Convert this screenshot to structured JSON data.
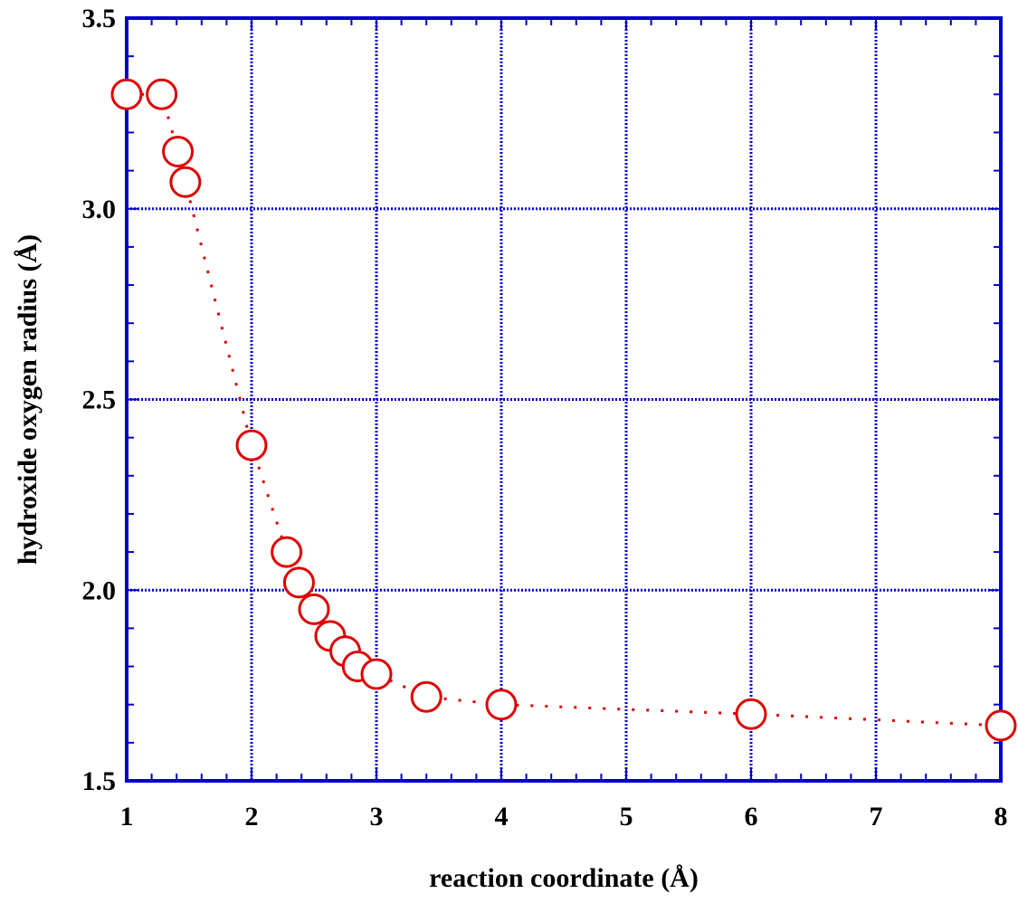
{
  "chart_data": {
    "type": "scatter",
    "title": "",
    "xlabel": "reaction coordinate (Å)",
    "ylabel": "hydroxide oxygen radius (Å)",
    "xlim": [
      1,
      8
    ],
    "ylim": [
      1.5,
      3.5
    ],
    "x_ticks": [
      "1",
      "2",
      "3",
      "4",
      "5",
      "6",
      "7",
      "8"
    ],
    "y_ticks": [
      "1.5",
      "2.0",
      "2.5",
      "3.0",
      "3.5"
    ],
    "grid": true,
    "legend": "none",
    "colors": {
      "axis": "#0000cc",
      "grid": "#0000cc",
      "series": "#dd0000"
    },
    "series": [
      {
        "marker": "open-circle",
        "line": "dotted",
        "points": [
          {
            "x": 1.0,
            "y": 3.3
          },
          {
            "x": 1.28,
            "y": 3.3
          },
          {
            "x": 1.41,
            "y": 3.15
          },
          {
            "x": 1.47,
            "y": 3.07
          },
          {
            "x": 2.0,
            "y": 2.38
          },
          {
            "x": 2.28,
            "y": 2.1
          },
          {
            "x": 2.38,
            "y": 2.02
          },
          {
            "x": 2.5,
            "y": 1.95
          },
          {
            "x": 2.63,
            "y": 1.88
          },
          {
            "x": 2.75,
            "y": 1.84
          },
          {
            "x": 2.85,
            "y": 1.8
          },
          {
            "x": 3.0,
            "y": 1.78
          },
          {
            "x": 3.4,
            "y": 1.72
          },
          {
            "x": 4.0,
            "y": 1.7
          },
          {
            "x": 6.0,
            "y": 1.675
          },
          {
            "x": 8.0,
            "y": 1.645
          }
        ]
      }
    ]
  }
}
